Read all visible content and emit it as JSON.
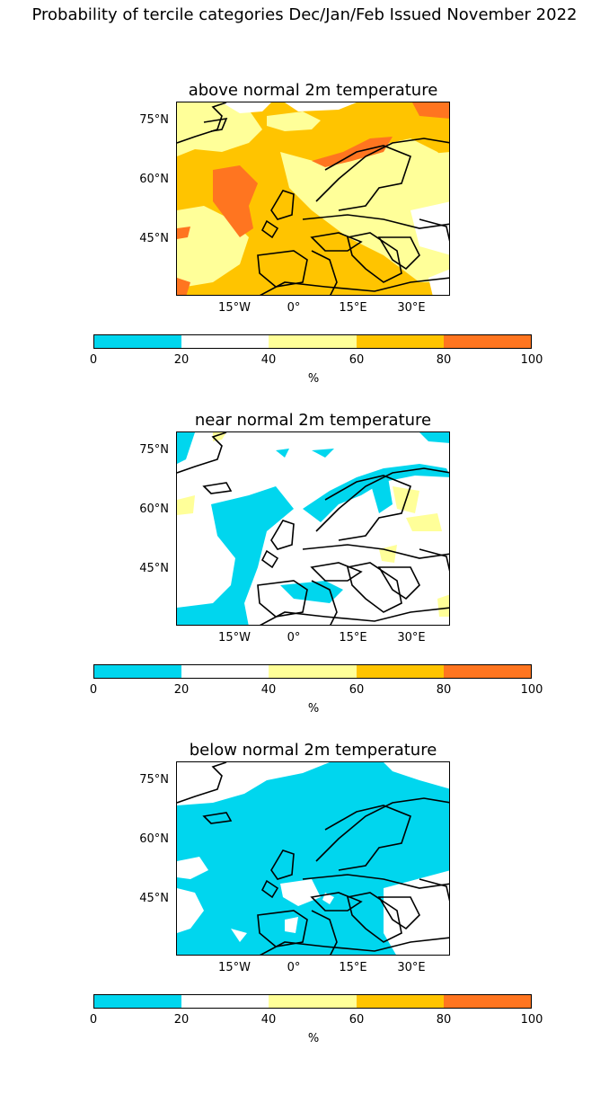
{
  "suptitle": "Probability of tercile categories Dec/Jan/Feb Issued November 2022",
  "palette": [
    "#00d6ee",
    "#ffffff",
    "#ffff99",
    "#ffc400",
    "#ff7520"
  ],
  "colorbar": {
    "ticks": [
      "0",
      "20",
      "40",
      "60",
      "80",
      "100"
    ],
    "label": "%"
  },
  "lat_labels": [
    "75°N",
    "60°N",
    "45°N"
  ],
  "lon_labels": [
    "15°W",
    "0°",
    "15°E",
    "30°E"
  ],
  "panels": [
    {
      "title": "above normal 2m temperature"
    },
    {
      "title": "near normal 2m temperature"
    },
    {
      "title": "below normal 2m temperature"
    }
  ]
}
